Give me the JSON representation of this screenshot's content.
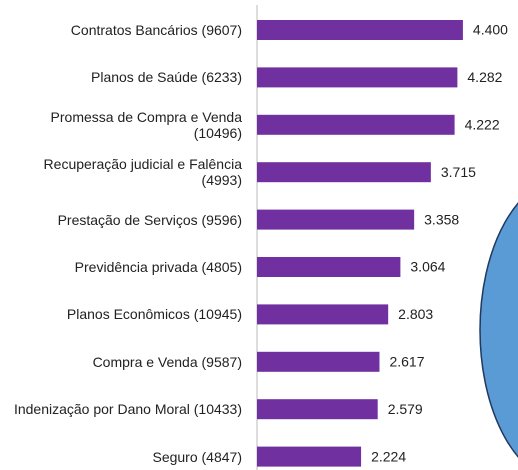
{
  "chart_data": {
    "type": "bar",
    "orientation": "horizontal",
    "color": "#7030a0",
    "categories": [
      "Contratos Bancários (9607)",
      "Planos de Saúde (6233)",
      "Promessa de Compra e Venda (10496)",
      "Recuperação judicial e Falência (4993)",
      "Prestação de Serviços (9596)",
      "Previdência privada (4805)",
      "Planos Econômicos (10945)",
      "Compra e Venda (9587)",
      "Indenização por Dano Moral (10433)",
      "Seguro (4847)"
    ],
    "values": [
      4.4,
      4.282,
      4.222,
      3.715,
      3.358,
      3.064,
      2.803,
      2.617,
      2.579,
      2.224
    ],
    "value_labels": [
      "4.400",
      "4.282",
      "4.222",
      "3.715",
      "3.358",
      "3.064",
      "2.803",
      "2.617",
      "2.579",
      "2.224"
    ]
  }
}
